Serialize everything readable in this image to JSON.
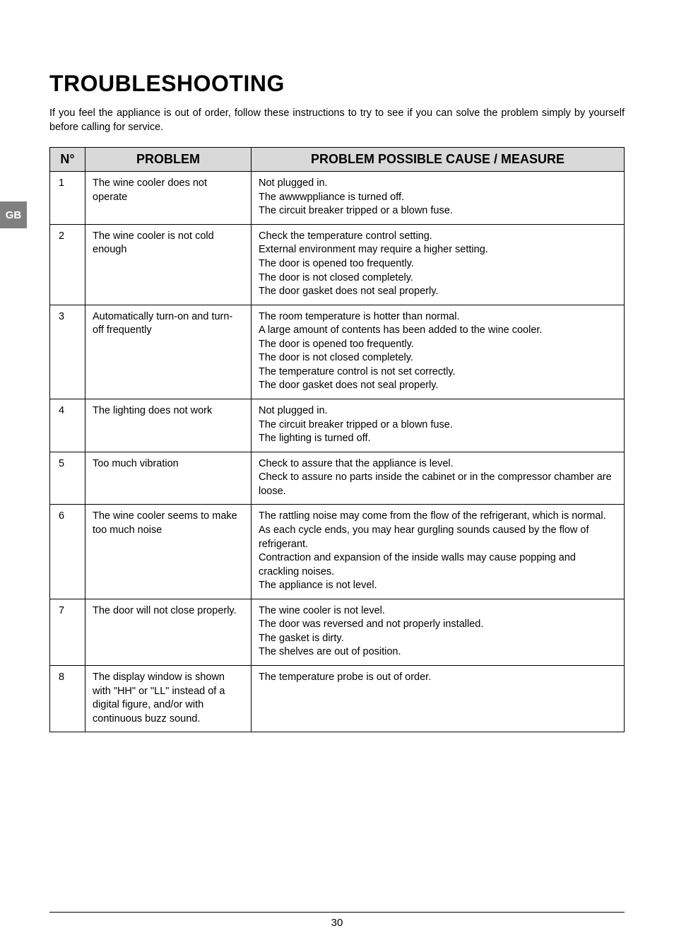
{
  "sideTab": "GB",
  "title": "TROUBLESHOOTING",
  "intro": "If you feel the appliance is out of order, follow these instructions to try to see if you can solve the problem simply by yourself before calling for service.",
  "headers": {
    "n": "N°",
    "problem": "PROBLEM",
    "measure": "PROBLEM POSSIBLE CAUSE / MEASURE"
  },
  "rows": [
    {
      "n": "1",
      "problem": "The wine cooler does not operate",
      "measure": "Not plugged in.\nThe awwwppliance is turned off.\nThe circuit breaker tripped or a blown fuse."
    },
    {
      "n": "2",
      "problem": "The wine cooler is not cold enough",
      "measure": "Check the temperature control setting.\nExternal environment may require a higher setting.\nThe door is opened too frequently.\nThe door is not closed completely.\nThe door gasket does not seal properly."
    },
    {
      "n": "3",
      "problem": "Automatically turn-on and turn-off frequently",
      "measure": "The room temperature is hotter than normal.\nA large amount of contents has been added to the wine cooler.\nThe door is opened too frequently.\nThe door is not closed completely.\nThe temperature control is not set correctly.\nThe door gasket does not seal properly."
    },
    {
      "n": "4",
      "problem": "The lighting does not work",
      "measure": "Not plugged in.\nThe circuit breaker tripped or a blown fuse.\nThe lighting is turned off."
    },
    {
      "n": "5",
      "problem": "Too much vibration",
      "measure": "Check to assure that the appliance is level.\nCheck to assure no parts inside the cabinet or in the compressor chamber are loose."
    },
    {
      "n": "6",
      "problem": "The wine cooler seems to make too much noise",
      "measure": "The rattling noise may come from the flow of the refrigerant, which is normal.\nAs each cycle ends, you may hear gurgling sounds caused by the flow of refrigerant.\nContraction and expansion of the inside walls may cause popping and crackling noises.\nThe appliance is not level."
    },
    {
      "n": "7",
      "problem": "The door will not close properly.",
      "measure": "The wine cooler is not level.\nThe door was reversed and not properly installed.\nThe gasket is dirty.\nThe shelves are out of position."
    },
    {
      "n": "8",
      "problem": "The display window is shown with \"HH\" or \"LL\" instead of a digital figure, and/or with continuous buzz sound.",
      "measure": "The temperature probe is out of order."
    }
  ],
  "pageNumber": "30"
}
